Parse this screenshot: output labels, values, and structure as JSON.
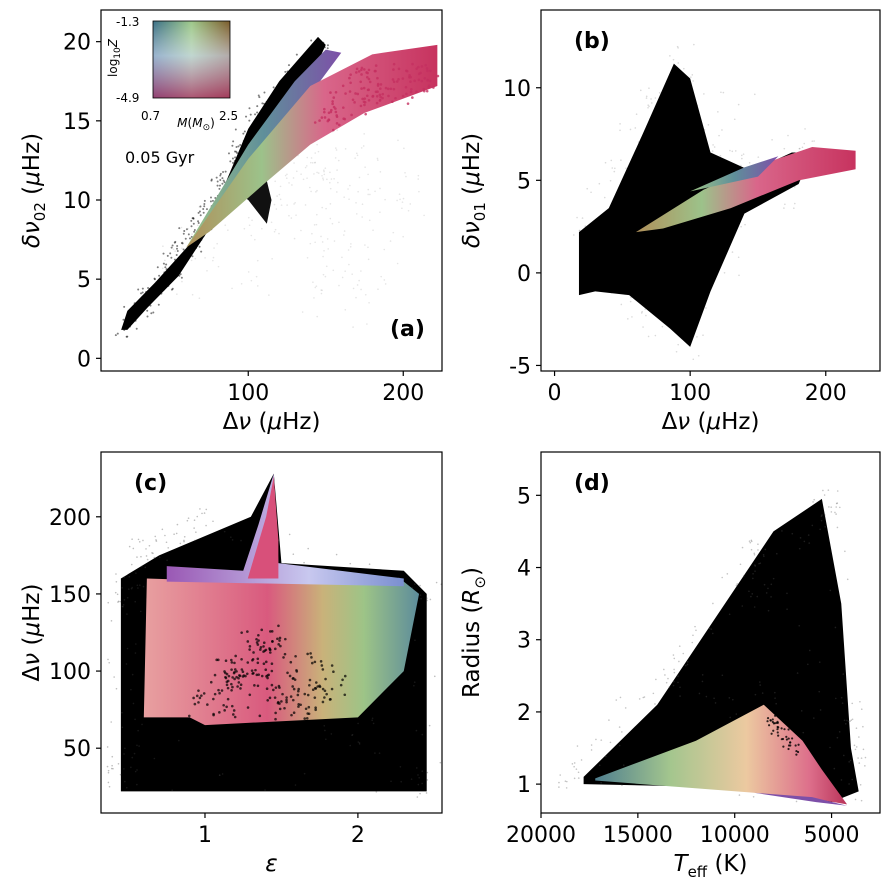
{
  "chart_data": [
    {
      "type": "scatter",
      "panel_label": "(a)",
      "xlabel": "Δν (μHz)",
      "ylabel": "δν02 (μHz)",
      "xlim": [
        5,
        225
      ],
      "ylim": [
        -0.8,
        22
      ],
      "xticks": [
        100,
        200
      ],
      "yticks": [
        0,
        5,
        10,
        15,
        20
      ],
      "annotation": "0.05 Gyr",
      "inset": {
        "ylabel": "log10 Z",
        "xlabel": "M(M⊙)",
        "zmax": "-1.3",
        "zmin": "-4.9",
        "mmin": "0.7",
        "mmax": "2.5"
      },
      "background_points": [
        [
          18,
          1.9
        ],
        [
          30,
          3
        ],
        [
          50,
          5
        ],
        [
          70,
          7.5
        ],
        [
          85,
          10.5
        ],
        [
          95,
          14
        ],
        [
          110,
          16.5
        ],
        [
          130,
          18
        ],
        [
          150,
          20
        ],
        [
          100,
          9
        ],
        [
          120,
          7
        ],
        [
          140,
          5
        ],
        [
          150,
          3
        ],
        [
          160,
          2
        ],
        [
          160,
          8
        ],
        [
          200,
          10
        ]
      ],
      "colored_track": [
        [
          60,
          7
        ],
        [
          100,
          12.5
        ],
        [
          130,
          16
        ],
        [
          165,
          18.5
        ],
        [
          220,
          19.5
        ]
      ]
    },
    {
      "type": "scatter",
      "panel_label": "(b)",
      "xlabel": "Δν (μHz)",
      "ylabel": "δν01 (μHz)",
      "xlim": [
        -10,
        240
      ],
      "ylim": [
        -5.3,
        14.2
      ],
      "xticks": [
        0,
        100,
        200
      ],
      "yticks": [
        -5,
        0,
        5,
        10
      ],
      "background_points": [
        [
          18,
          2
        ],
        [
          18,
          -1
        ],
        [
          40,
          2
        ],
        [
          70,
          8
        ],
        [
          90,
          11
        ],
        [
          100,
          10
        ],
        [
          120,
          5
        ],
        [
          100,
          -3.5
        ],
        [
          70,
          -2
        ],
        [
          140,
          5
        ],
        [
          180,
          6.5
        ]
      ],
      "colored_track": [
        [
          60,
          2.2
        ],
        [
          100,
          3.8
        ],
        [
          140,
          5
        ],
        [
          180,
          6.2
        ],
        [
          220,
          6.5
        ]
      ]
    },
    {
      "type": "scatter",
      "panel_label": "(c)",
      "xlabel": "ε",
      "ylabel": "Δν (μHz)",
      "xlim": [
        0.32,
        2.55
      ],
      "ylim": [
        8,
        242
      ],
      "xticks": [
        1,
        2
      ],
      "yticks": [
        50,
        100,
        150,
        200
      ],
      "background_points": [
        [
          0.5,
          25
        ],
        [
          0.8,
          25
        ],
        [
          2.4,
          22
        ],
        [
          2.4,
          130
        ],
        [
          2.2,
          160
        ],
        [
          1.4,
          225
        ],
        [
          0.5,
          120
        ],
        [
          1.0,
          60
        ]
      ],
      "colored_region": [
        [
          0.6,
          70
        ],
        [
          0.6,
          160
        ],
        [
          1.3,
          165
        ],
        [
          1.45,
          228
        ],
        [
          2.4,
          160
        ],
        [
          2.3,
          100
        ],
        [
          1.8,
          70
        ],
        [
          0.8,
          70
        ]
      ]
    },
    {
      "type": "scatter",
      "panel_label": "(d)",
      "xlabel": "Teff (K)",
      "ylabel": "Radius (R⊙)",
      "xlim": [
        20000,
        2500
      ],
      "ylim": [
        0.6,
        5.6
      ],
      "xticks": [
        20000,
        15000,
        10000,
        5000
      ],
      "xticklabels": [
        "20000",
        "15000",
        "10000",
        "5000"
      ],
      "yticks": [
        1,
        2,
        3,
        4,
        5
      ],
      "background_points": [
        [
          17800,
          1.1
        ],
        [
          15000,
          2
        ],
        [
          12000,
          3.2
        ],
        [
          9000,
          4.5
        ],
        [
          5500,
          4.9
        ],
        [
          4200,
          3
        ],
        [
          4000,
          1.2
        ],
        [
          6000,
          0.8
        ]
      ],
      "colored_region": [
        [
          17000,
          1.1
        ],
        [
          8500,
          2.1
        ],
        [
          5500,
          1.3
        ],
        [
          4200,
          0.8
        ],
        [
          7000,
          0.9
        ],
        [
          17000,
          1.05
        ]
      ]
    }
  ]
}
